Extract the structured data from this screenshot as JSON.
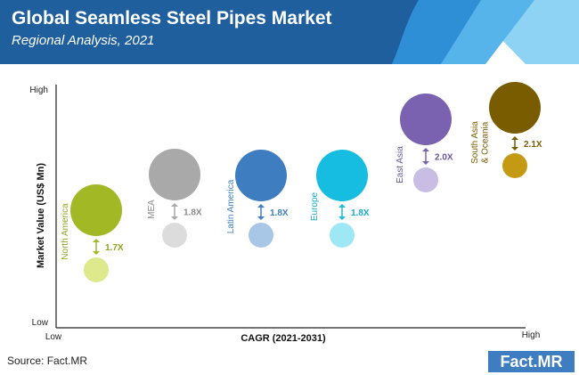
{
  "header": {
    "title": "Global Seamless Steel Pipes Market",
    "subtitle": "Regional Analysis, 2021",
    "colors": {
      "band": "#1f5f9e",
      "stripe1": "#2f8fd6",
      "stripe2": "#56b4ea",
      "stripe3": "#8fd3f4"
    }
  },
  "footer": {
    "source": "Source: Fact.MR",
    "logo_left": "Fact",
    "logo_dot": ".",
    "logo_right": "MR"
  },
  "chart_data": {
    "type": "bubble",
    "xlabel": "CAGR (2021-2031)",
    "ylabel": "Market Value (US$ Mn)",
    "x_ticks": {
      "low": "Low",
      "high": "High"
    },
    "y_ticks": {
      "low": "Low",
      "high": "High"
    },
    "grid": false,
    "legend": "none",
    "series": [
      {
        "name": "North America",
        "cagr_rank": 1,
        "multiplier": "1.7X",
        "color": "#a3b825",
        "light": "#dde98c",
        "label_color": "#8fa31f"
      },
      {
        "name": "MEA",
        "cagr_rank": 2,
        "multiplier": "1.8X",
        "color": "#a9a9a9",
        "light": "#dcdcdc",
        "label_color": "#8a8a8a"
      },
      {
        "name": "Latin America",
        "cagr_rank": 3,
        "multiplier": "1.8X",
        "color": "#3e7dc0",
        "light": "#a8c6e6",
        "label_color": "#3e7dc0"
      },
      {
        "name": "Europe",
        "cagr_rank": 4,
        "multiplier": "1.8X",
        "color": "#16bde0",
        "light": "#9ee7f5",
        "label_color": "#16a9cc"
      },
      {
        "name": "East Asia",
        "cagr_rank": 5,
        "multiplier": "2.0X",
        "color": "#7b62b0",
        "light": "#c9bde3",
        "label_color": "#6a55a0"
      },
      {
        "name": "South Asia & Oceania",
        "cagr_rank": 6,
        "multiplier": "2.1X",
        "color": "#7a5c00",
        "light": "#c49a15",
        "label_color": "#7a5c00"
      }
    ]
  }
}
